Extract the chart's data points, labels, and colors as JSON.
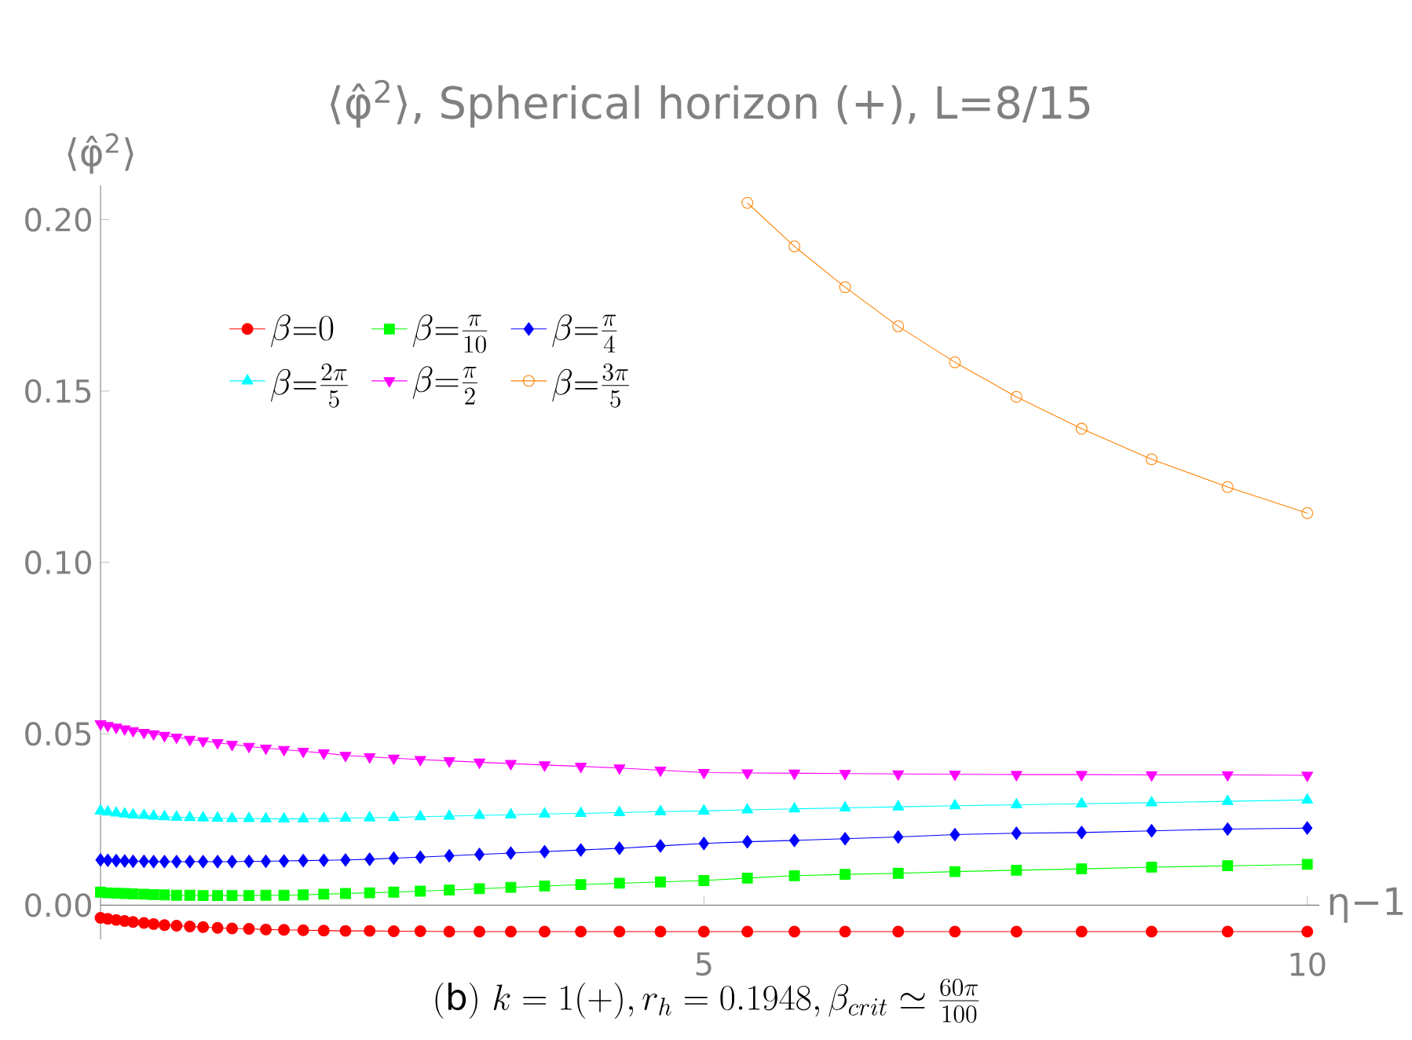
{
  "chart_data": {
    "type": "line",
    "title": "⟨φ̂$^{2}$⟩, Spherical horizon (+), L=8/15",
    "xlabel": "η−1",
    "ylabel": "⟨φ̂$^{2}$⟩",
    "annotations": [
      "\\mathrm{(b)}\\ k=1(+), r_h=0.1948, \\beta_{crit}\\simeq\\frac{60\\pi}{100}"
    ],
    "xlim": [
      0,
      10.1
    ],
    "ylim": [
      -0.01,
      0.21
    ],
    "xticks": [
      5,
      10
    ],
    "yticks": [
      {
        "value": 0,
        "label": "0.00"
      },
      {
        "value": 0.05,
        "label": "0.05"
      },
      {
        "value": 0.1,
        "label": "0.10"
      },
      {
        "value": 0.15,
        "label": "0.15"
      },
      {
        "value": 0.2,
        "label": "0.20"
      }
    ],
    "grid": false,
    "legend": "top left",
    "x": [
      0.0,
      0.06,
      0.13,
      0.2,
      0.27,
      0.36,
      0.44,
      0.53,
      0.63,
      0.74,
      0.85,
      0.97,
      1.09,
      1.23,
      1.37,
      1.52,
      1.68,
      1.85,
      2.03,
      2.23,
      2.43,
      2.65,
      2.89,
      3.14,
      3.4,
      3.68,
      3.98,
      4.3,
      4.64,
      5.0,
      5.36,
      5.75,
      6.17,
      6.61,
      7.08,
      7.59,
      8.13,
      8.71,
      9.34,
      10.0
    ],
    "series": [
      {
        "name": "\\beta{=}0",
        "color": "#ff0000",
        "marker": "circle",
        "values": [
          -0.0037,
          -0.004,
          -0.0043,
          -0.0046,
          -0.0049,
          -0.0052,
          -0.0055,
          -0.0058,
          -0.006,
          -0.0062,
          -0.0064,
          -0.0066,
          -0.0068,
          -0.0069,
          -0.0071,
          -0.0072,
          -0.0073,
          -0.0074,
          -0.0075,
          -0.0075,
          -0.0076,
          -0.0076,
          -0.0077,
          -0.0077,
          -0.0077,
          -0.0077,
          -0.0077,
          -0.0077,
          -0.0077,
          -0.0077,
          -0.0077,
          -0.0077,
          -0.0077,
          -0.0077,
          -0.0077,
          -0.0077,
          -0.0077,
          -0.0077,
          -0.0077,
          -0.0077
        ]
      },
      {
        "name": "\\beta{=}\\frac{\\pi}{10}",
        "color": "#00ff00",
        "marker": "square",
        "values": [
          0.0038,
          0.0036,
          0.0035,
          0.0034,
          0.0033,
          0.0032,
          0.0031,
          0.003,
          0.0029,
          0.0029,
          0.0028,
          0.0028,
          0.0028,
          0.0028,
          0.0029,
          0.0029,
          0.003,
          0.0032,
          0.0034,
          0.0036,
          0.0038,
          0.0041,
          0.0044,
          0.0048,
          0.0052,
          0.0056,
          0.006,
          0.0064,
          0.0068,
          0.0072,
          0.0079,
          0.0086,
          0.009,
          0.0093,
          0.0098,
          0.0102,
          0.0106,
          0.0111,
          0.0115,
          0.0119
        ]
      },
      {
        "name": "\\beta{=}\\frac{\\pi}{4}",
        "color": "#0000ff",
        "marker": "diamond",
        "values": [
          0.0132,
          0.0131,
          0.013,
          0.0129,
          0.0128,
          0.0128,
          0.0127,
          0.0127,
          0.0127,
          0.0127,
          0.0127,
          0.0127,
          0.0127,
          0.0128,
          0.0128,
          0.0129,
          0.013,
          0.0131,
          0.0132,
          0.0134,
          0.0137,
          0.014,
          0.0144,
          0.0148,
          0.0152,
          0.0156,
          0.0161,
          0.0166,
          0.0173,
          0.018,
          0.0185,
          0.0189,
          0.0194,
          0.0199,
          0.0206,
          0.021,
          0.0212,
          0.0217,
          0.0222,
          0.0225
        ]
      },
      {
        "name": "\\beta{=}\\frac{2\\pi}{5}",
        "color": "#00ffff",
        "marker": "triangle",
        "values": [
          0.0275,
          0.0272,
          0.0269,
          0.0266,
          0.0264,
          0.0262,
          0.026,
          0.0258,
          0.0257,
          0.0256,
          0.0255,
          0.0254,
          0.0253,
          0.0253,
          0.0252,
          0.0252,
          0.0252,
          0.0253,
          0.0254,
          0.0255,
          0.0256,
          0.0258,
          0.026,
          0.0262,
          0.0264,
          0.0266,
          0.0268,
          0.027,
          0.0273,
          0.0275,
          0.0278,
          0.0281,
          0.0284,
          0.0287,
          0.029,
          0.0293,
          0.0296,
          0.0299,
          0.0303,
          0.0307
        ]
      },
      {
        "name": "\\beta{=}\\frac{\\pi}{2}",
        "color": "#ff00ff",
        "marker": "triangle-down",
        "values": [
          0.0529,
          0.0524,
          0.0519,
          0.0514,
          0.0509,
          0.0504,
          0.05,
          0.0495,
          0.049,
          0.0484,
          0.0479,
          0.0474,
          0.0469,
          0.0463,
          0.0458,
          0.0454,
          0.0449,
          0.0444,
          0.0437,
          0.0433,
          0.0429,
          0.0425,
          0.0421,
          0.0417,
          0.0413,
          0.0409,
          0.0405,
          0.04,
          0.0394,
          0.0387,
          0.0386,
          0.0385,
          0.0384,
          0.0383,
          0.0382,
          0.0381,
          0.0381,
          0.038,
          0.038,
          0.0379
        ]
      },
      {
        "name": "\\beta{=}\\frac{3\\pi}{5}",
        "color": "#ff8000",
        "marker": "open-circle",
        "x": [
          5.36,
          5.75,
          6.17,
          6.61,
          7.08,
          7.59,
          8.13,
          8.71,
          9.34,
          10.0
        ],
        "values": [
          0.2049,
          0.1922,
          0.1803,
          0.1689,
          0.1584,
          0.1483,
          0.139,
          0.1301,
          0.122,
          0.1144
        ]
      }
    ]
  }
}
